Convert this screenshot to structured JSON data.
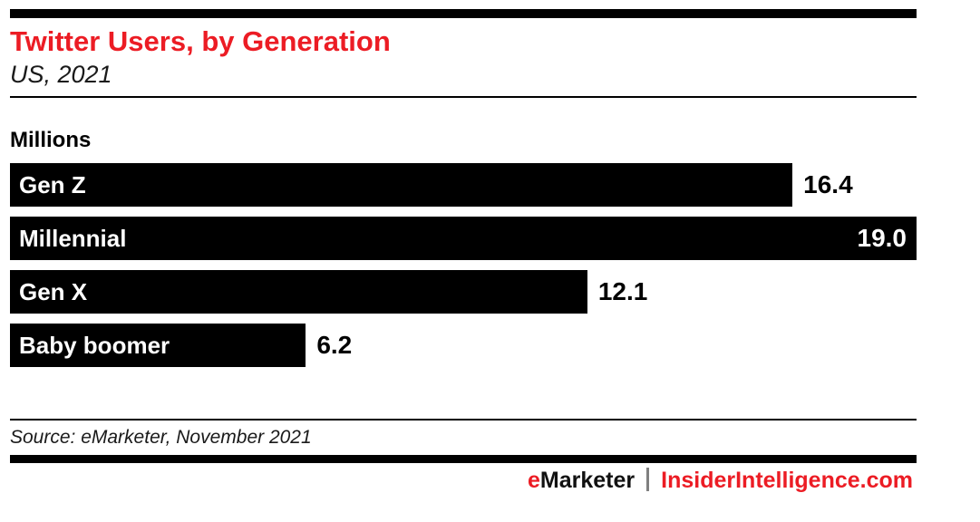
{
  "header": {
    "title": "Twitter Users, by Generation",
    "subtitle": "US, 2021"
  },
  "chart_data": {
    "type": "bar",
    "orientation": "horizontal",
    "title": "Twitter Users, by Generation",
    "subtitle": "US, 2021",
    "units": "Millions",
    "categories": [
      "Gen Z",
      "Millennial",
      "Gen X",
      "Baby boomer"
    ],
    "values": [
      16.4,
      19.0,
      12.1,
      6.2
    ],
    "value_labels": [
      "16.4",
      "19.0",
      "12.1",
      "6.2"
    ],
    "xlim": [
      0,
      19.0
    ],
    "grid": false,
    "legend": false,
    "bar_color": "#000000",
    "category_label_position": "inside-left",
    "value_label_position": "outside-right-or-inside-when-full"
  },
  "footer": {
    "source": "Source: eMarketer, November 2021",
    "brand_left_accent": "e",
    "brand_left_rest": "Marketer",
    "divider": "|",
    "brand_right": "InsiderIntelligence.com"
  },
  "colors": {
    "accent_red": "#EC1C24",
    "bar_black": "#000000",
    "divider_gray": "#808080",
    "background": "#FFFFFF"
  }
}
